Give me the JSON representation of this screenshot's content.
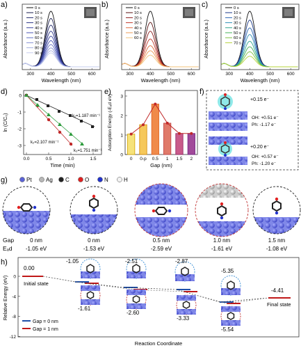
{
  "panels": {
    "a": {
      "label": "a)",
      "ylabel": "Absorbance (a.u.)",
      "xlabel": "Wavelength (nm)",
      "xticks": [
        "300",
        "400",
        "500",
        "600"
      ],
      "legend": [
        "0 s",
        "10 s",
        "20 s",
        "30 s",
        "40 s",
        "50 s",
        "60 s",
        "70 s",
        "80 s",
        "90 s"
      ],
      "peaks": [
        1.0,
        0.87,
        0.75,
        0.64,
        0.55,
        0.47,
        0.4,
        0.34,
        0.29,
        0.25
      ],
      "colors": [
        "#111111",
        "#1b1f4e",
        "#23296b",
        "#2c3587",
        "#3a44a0",
        "#4b56b4",
        "#6470c4",
        "#8590d4",
        "#a7b0e2",
        "#c6cdee"
      ]
    },
    "b": {
      "label": "b)",
      "ylabel": "Absorbance (a.u.)",
      "xlabel": "Wavelength (nm)",
      "xticks": [
        "300",
        "400",
        "500",
        "600"
      ],
      "legend": [
        "0 s",
        "10 s",
        "20 s",
        "30 s",
        "40 s",
        "50 s",
        "60 s"
      ],
      "peaks": [
        1.0,
        0.8,
        0.64,
        0.5,
        0.38,
        0.29,
        0.21
      ],
      "colors": [
        "#111111",
        "#5a1212",
        "#8c1c1c",
        "#c0392b",
        "#e06a3b",
        "#eb9b56",
        "#f2c37a"
      ]
    },
    "c": {
      "label": "c)",
      "ylabel": "Absorbance (a.u.)",
      "xlabel": "Wavelength (nm)",
      "xticks": [
        "300",
        "400",
        "500",
        "600"
      ],
      "legend": [
        "0 s",
        "10 s",
        "20 s",
        "30 s",
        "40 s",
        "50 s",
        "60 s",
        "70 s"
      ],
      "peaks": [
        1.0,
        0.84,
        0.7,
        0.58,
        0.46,
        0.36,
        0.27,
        0.19
      ],
      "colors": [
        "#111111",
        "#1c3a8a",
        "#2a67b5",
        "#2f8fb8",
        "#2ea68c",
        "#45b05a",
        "#7cc043",
        "#b5d33a"
      ]
    },
    "d": {
      "label": "d)",
      "ylabel": "ln (C/C₀)",
      "xlabel": "Time (min)",
      "xticks": [
        "0.0",
        "0.5",
        "1.0",
        "1.5"
      ],
      "yticks": [
        "0",
        "-1",
        "-2",
        "-3"
      ],
      "k1": "k₁=1.187 min⁻¹",
      "k2": "k₂=2.107 min⁻¹",
      "k3": "k₃=1.751 min⁻¹"
    },
    "e": {
      "label": "e)",
      "ylabel": "Adsorption Energy (-Eₐd eV)",
      "xlabel": "Gap (nm)",
      "xticks": [
        "0",
        "0-p",
        "0.5",
        "1",
        "1.5",
        "2"
      ],
      "yticks": [
        "0",
        "1",
        "2",
        "3"
      ],
      "chart_data": {
        "type": "bar",
        "categories": [
          "0",
          "0-p",
          "0.5",
          "1",
          "1.5",
          "2"
        ],
        "values": [
          1.05,
          1.53,
          2.59,
          1.61,
          1.08,
          1.08
        ],
        "ylim": [
          0,
          3
        ]
      }
    },
    "f": {
      "label": "f)",
      "charge1": "+0.15 e⁻",
      "oh1": "OH: +0.51 e⁻",
      "ph1": "Ph: -1.17 e⁻",
      "charge2": "+0.20 e⁻",
      "oh2": "OH: +0.57 e⁻",
      "ph2": "Ph: -1.20 e⁻"
    },
    "g": {
      "label": "g)",
      "legend": [
        {
          "sym": "Pt",
          "color": "#5b63d6"
        },
        {
          "sym": "Ag",
          "color": "#b7b7b7"
        },
        {
          "sym": "C",
          "color": "#222222"
        },
        {
          "sym": "O",
          "color": "#e02020"
        },
        {
          "sym": "N",
          "color": "#2233cc"
        },
        {
          "sym": "H",
          "color": "#f2f2f2"
        }
      ],
      "row_gap": "Gap",
      "row_ead": "Eₐd",
      "gaps": [
        "0 nm",
        "0 nm",
        "0.5 nm",
        "1.0 nm",
        "1.5 nm"
      ],
      "energies": [
        "-1.05 eV",
        "-1.53 eV",
        "-2.59 eV",
        "-1.61 eV",
        "-1.08 eV"
      ]
    },
    "h": {
      "label": "h)",
      "ylabel": "Relative Energy (eV)",
      "xlabel": "Reaction Coordinate",
      "yticks": [
        "0",
        "-4",
        "-8",
        "-12"
      ],
      "initial": "Initial state",
      "final": "Final state",
      "top_vals": [
        "0.00",
        "-1.05",
        "-2.51",
        "-2.87",
        "-5.35",
        "-4.41"
      ],
      "bot_vals": [
        "-1.61",
        "-2.60",
        "-3.33",
        "-5.54"
      ],
      "legend0": "Gap = 0 nm",
      "legend1": "Gap = 1 nm"
    }
  }
}
